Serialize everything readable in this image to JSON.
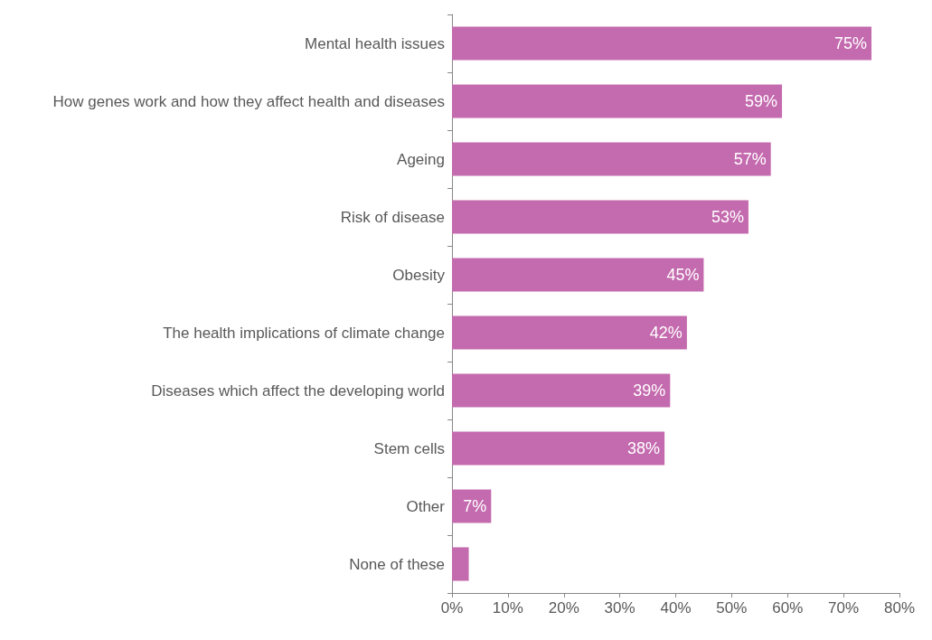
{
  "chart_data": {
    "type": "bar",
    "orientation": "horizontal",
    "categories": [
      "Mental health issues",
      "How genes work and how they affect health and diseases",
      "Ageing",
      "Risk of disease",
      "Obesity",
      "The health implications of climate change",
      "Diseases which affect the developing world",
      "Stem cells",
      "Other",
      "None of these"
    ],
    "values": [
      75,
      59,
      57,
      53,
      45,
      42,
      39,
      38,
      7,
      3
    ],
    "value_labels": [
      "75%",
      "59%",
      "57%",
      "53%",
      "45%",
      "42%",
      "39%",
      "38%",
      "7%",
      null
    ],
    "color": "#c46aae",
    "xlim": [
      0,
      80
    ],
    "xticks": [
      {
        "value": 0,
        "label": "0%"
      },
      {
        "value": 10,
        "label": "10%"
      },
      {
        "value": 20,
        "label": "20%"
      },
      {
        "value": 30,
        "label": "30%"
      },
      {
        "value": 40,
        "label": "40%"
      },
      {
        "value": 50,
        "label": "50%"
      },
      {
        "value": 60,
        "label": "60%"
      },
      {
        "value": 70,
        "label": "70%"
      },
      {
        "value": 80,
        "label": "80%"
      }
    ],
    "grid": false
  }
}
